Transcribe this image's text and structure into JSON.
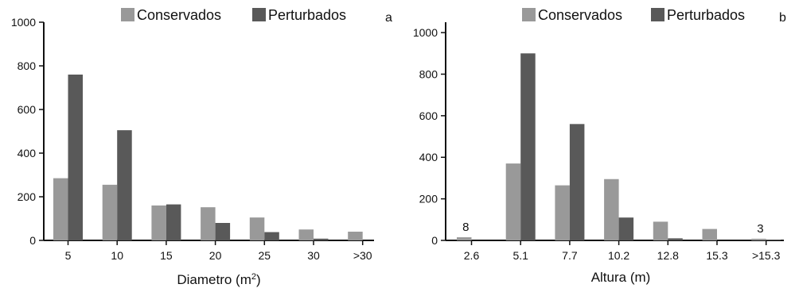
{
  "chart_data": [
    {
      "type": "bar",
      "panel_label": "a",
      "xlabel": "Diametro (m",
      "xlabel_sup": "2",
      "xlabel_end": ")",
      "ylabel": "",
      "ylim": [
        0,
        1000
      ],
      "yticks": [
        0,
        200,
        400,
        600,
        800,
        1000
      ],
      "categories": [
        "5",
        "10",
        "15",
        "20",
        "25",
        "30",
        ">30"
      ],
      "series": [
        {
          "name": "Conservados",
          "color": "#999999",
          "values": [
            285,
            255,
            160,
            152,
            105,
            50,
            40
          ]
        },
        {
          "name": "Perturbados",
          "color": "#595959",
          "values": [
            760,
            505,
            165,
            80,
            38,
            8,
            0
          ]
        }
      ],
      "annotations": [],
      "legend": "top-center",
      "grid": false
    },
    {
      "type": "bar",
      "panel_label": "b",
      "xlabel": "Altura (m)",
      "ylabel": "",
      "ylim": [
        0,
        1050
      ],
      "yticks": [
        0,
        200,
        400,
        600,
        800,
        1000
      ],
      "categories": [
        "2.6",
        "5.1",
        "7.7",
        "10.2",
        "12.8",
        "15.3",
        ">15.3"
      ],
      "series": [
        {
          "name": "Conservados",
          "color": "#999999",
          "values": [
            15,
            370,
            265,
            295,
            90,
            55,
            8
          ]
        },
        {
          "name": "Perturbados",
          "color": "#595959",
          "values": [
            0,
            900,
            560,
            110,
            10,
            0,
            3
          ]
        }
      ],
      "annotations": [
        {
          "category_index": 0,
          "text": "8"
        },
        {
          "category_index": 6,
          "text": "3"
        }
      ],
      "legend": "top-center",
      "grid": false
    }
  ]
}
